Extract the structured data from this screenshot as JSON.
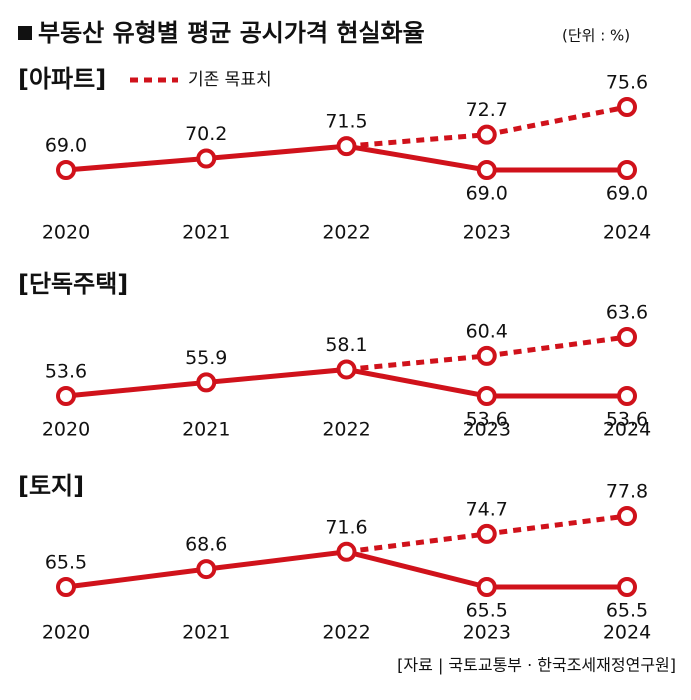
{
  "title": "부동산 유형별 평균 공시가격 현실화율",
  "unit": "(단위 : %)",
  "source": "[자료 | 국토교통부 · 한국조세재정연구원]",
  "chart_data": [
    {
      "type": "line",
      "title": "[아파트]",
      "categories": [
        "2020",
        "2021",
        "2022",
        "2023",
        "2024"
      ],
      "series": [
        {
          "color": "#d0121b",
          "values": [
            69.0,
            70.2,
            71.5,
            69.0,
            69.0
          ],
          "value_labels": [
            "69.0",
            "70.2",
            "71.5",
            "69.0",
            "69.0"
          ]
        },
        {
          "name": "기존 목표치",
          "color": "#d0121b",
          "dashed": true,
          "values": [
            null,
            null,
            71.5,
            72.7,
            75.6
          ],
          "value_labels": [
            null,
            null,
            null,
            "72.7",
            "75.6"
          ]
        }
      ]
    },
    {
      "type": "line",
      "title": "[단독주택]",
      "categories": [
        "2020",
        "2021",
        "2022",
        "2023",
        "2024"
      ],
      "series": [
        {
          "color": "#d0121b",
          "values": [
            53.6,
            55.9,
            58.1,
            53.6,
            53.6
          ],
          "value_labels": [
            "53.6",
            "55.9",
            "58.1",
            "53.6",
            "53.6"
          ]
        },
        {
          "color": "#d0121b",
          "dashed": true,
          "values": [
            null,
            null,
            58.1,
            60.4,
            63.6
          ],
          "value_labels": [
            null,
            null,
            null,
            "60.4",
            "63.6"
          ]
        }
      ]
    },
    {
      "type": "line",
      "title": "[토지]",
      "categories": [
        "2020",
        "2021",
        "2022",
        "2023",
        "2024"
      ],
      "series": [
        {
          "color": "#d0121b",
          "values": [
            65.5,
            68.6,
            71.6,
            65.5,
            65.5
          ],
          "value_labels": [
            "65.5",
            "68.6",
            "71.6",
            "65.5",
            "65.5"
          ]
        },
        {
          "color": "#d0121b",
          "dashed": true,
          "values": [
            null,
            null,
            71.6,
            74.7,
            77.8
          ],
          "value_labels": [
            null,
            null,
            null,
            "74.7",
            "77.8"
          ]
        }
      ]
    }
  ]
}
